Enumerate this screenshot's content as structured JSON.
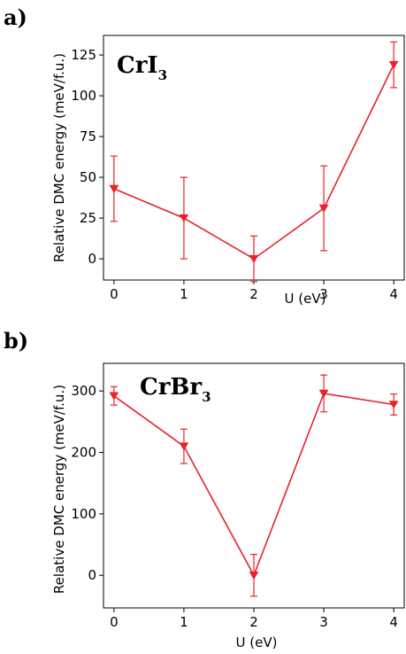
{
  "chart_data": [
    {
      "panel_label": "a)",
      "type": "line",
      "title_main": "CrI",
      "title_sub": "3",
      "xlabel": "U (eV)",
      "ylabel": "Relative DMC energy (meV/f.u.)",
      "x": [
        0,
        1,
        2,
        3,
        4
      ],
      "xticks": [
        "0",
        "1",
        "2",
        "3",
        "4"
      ],
      "xlim": [
        -0.15,
        4.15
      ],
      "ylim": [
        -13,
        137
      ],
      "yticks": [
        0,
        25,
        50,
        75,
        100,
        125
      ],
      "ytick_labels": [
        "0",
        "25",
        "50",
        "75",
        "100",
        "125"
      ],
      "series": [
        {
          "values": [
            43,
            25,
            0,
            31,
            119
          ],
          "errors": [
            20,
            25,
            14,
            26,
            14
          ],
          "color": "#e8212b",
          "marker": "triangle-down"
        }
      ],
      "grid": false
    },
    {
      "panel_label": "b)",
      "type": "line",
      "title_main": "CrBr",
      "title_sub": "3",
      "xlabel": "U (eV)",
      "ylabel": "Relative DMC energy (meV/f.u.)",
      "x": [
        0,
        1,
        2,
        3,
        4
      ],
      "xticks": [
        "0",
        "1",
        "2",
        "3",
        "4"
      ],
      "xlim": [
        -0.15,
        4.15
      ],
      "ylim": [
        -53,
        345
      ],
      "yticks": [
        0,
        100,
        200,
        300
      ],
      "ytick_labels": [
        "0",
        "100",
        "200",
        "300"
      ],
      "series": [
        {
          "values": [
            292,
            210,
            0,
            296,
            278
          ],
          "errors": [
            15,
            28,
            34,
            30,
            17
          ],
          "color": "#e8212b",
          "marker": "triangle-down"
        }
      ],
      "grid": false
    }
  ]
}
